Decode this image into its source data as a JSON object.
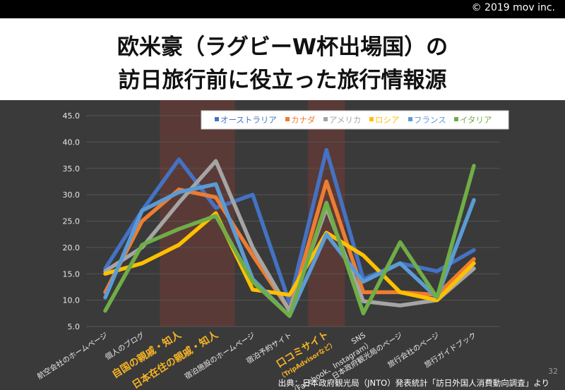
{
  "header": {
    "copyright": "© 2019 mov inc.",
    "title_line1": "欧米豪（ラグビーW杯出場国）の",
    "title_line2": "訪日旅行前に役立った旅行情報源"
  },
  "footer": {
    "page_number": "32",
    "source": "出典：日本政府観光局（JNTO）発表統計「訪日外国人消費動向調査」より"
  },
  "colors": {
    "background": "#3a3a3a",
    "highlight_band": "#5a3a36",
    "highlight_text": "#f5b324",
    "grid": "#555555"
  },
  "chart_data": {
    "type": "line",
    "ylim": [
      5.0,
      45.0
    ],
    "yticks": [
      "5.0",
      "10.0",
      "15.0",
      "20.0",
      "25.0",
      "30.0",
      "35.0",
      "40.0",
      "45.0"
    ],
    "categories": [
      "航空会社のホームページ",
      "個人のブログ",
      "自国の親戚・知人",
      "日本在住の親戚・知人",
      "宿泊施設のホームページ",
      "宿泊予約サイト",
      "口コミサイト",
      "SNS",
      "日本政府観光局のページ",
      "旅行会社のページ",
      "旅行ガイドブック"
    ],
    "category_subtitles": {
      "6": "（TripAdvisorなど）",
      "7": "（Facebook、Instagram）"
    },
    "highlighted_categories": [
      2,
      3,
      6
    ],
    "legend_position": "top-right",
    "series": [
      {
        "name": "オーストラリア",
        "color": "#4472c4",
        "values": [
          16.0,
          27.0,
          36.7,
          27.5,
          30.0,
          9.5,
          38.5,
          14.0,
          17.0,
          15.5,
          19.5
        ]
      },
      {
        "name": "カナダ",
        "color": "#ed7d31",
        "values": [
          11.5,
          25.0,
          31.0,
          29.5,
          18.5,
          8.0,
          32.5,
          11.5,
          11.5,
          11.0,
          17.8
        ]
      },
      {
        "name": "アメリカ",
        "color": "#a5a5a5",
        "values": [
          15.5,
          20.0,
          28.5,
          36.4,
          20.0,
          8.0,
          27.5,
          9.8,
          9.0,
          10.0,
          16.0
        ]
      },
      {
        "name": "ロシア",
        "color": "#ffc000",
        "values": [
          15.0,
          17.0,
          20.5,
          26.5,
          12.0,
          11.0,
          22.8,
          18.5,
          11.5,
          10.0,
          17.0
        ]
      },
      {
        "name": "フランス",
        "color": "#5b9bd5",
        "values": [
          10.5,
          27.0,
          30.5,
          32.0,
          14.0,
          7.0,
          22.5,
          13.5,
          17.0,
          10.5,
          29.0
        ]
      },
      {
        "name": "イタリア",
        "color": "#70ad47",
        "values": [
          8.0,
          20.5,
          23.5,
          26.0,
          13.5,
          7.0,
          28.5,
          7.5,
          21.0,
          10.5,
          35.5
        ]
      }
    ]
  }
}
